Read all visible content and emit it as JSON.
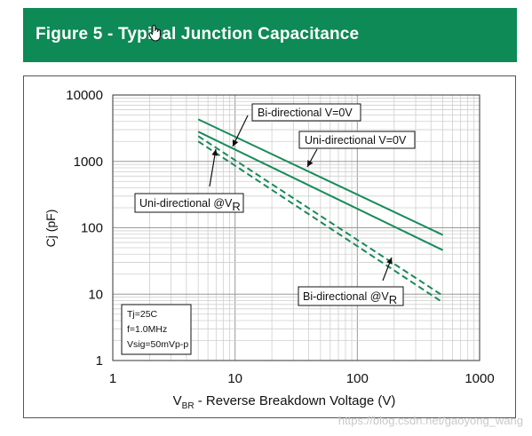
{
  "header": {
    "title": "Figure 5 - Typical Junction Capacitance",
    "background": "#0d8a55"
  },
  "chart_data": {
    "type": "line",
    "title": "",
    "xlabel": {
      "main": "V",
      "sub": "BR",
      "rest": " - Reverse Breakdown Voltage (V)"
    },
    "ylabel": "Cj (pF)",
    "xscale": "log",
    "yscale": "log",
    "xlim": [
      1,
      1000
    ],
    "ylim": [
      1,
      10000
    ],
    "x_ticks": [
      "1",
      "10",
      "100",
      "1000"
    ],
    "y_ticks": [
      "1",
      "10",
      "100",
      "1000",
      "10000"
    ],
    "grid": true,
    "series": [
      {
        "name": "Bi-directional V=0V",
        "style": "solid",
        "color": "#1a8a5a",
        "points": [
          [
            5,
            4300
          ],
          [
            500,
            78
          ]
        ]
      },
      {
        "name": "Uni-directional V=0V",
        "style": "solid",
        "color": "#1a8a5a",
        "points": [
          [
            5,
            2800
          ],
          [
            500,
            46
          ]
        ]
      },
      {
        "name": "Uni-directional @VR",
        "style": "dashed",
        "color": "#1a8a5a",
        "points": [
          [
            5,
            2400
          ],
          [
            500,
            9.5
          ]
        ]
      },
      {
        "name": "Bi-directional @VR",
        "style": "dashed",
        "color": "#1a8a5a",
        "points": [
          [
            5,
            2000
          ],
          [
            500,
            7.5
          ]
        ]
      }
    ],
    "annotations": [
      {
        "text": "Bi-directional V=0V",
        "sub": ""
      },
      {
        "text": "Uni-directional V=0V",
        "sub": ""
      },
      {
        "text": "Uni-directional @V",
        "sub": "R"
      },
      {
        "text": "Bi-directional @V",
        "sub": "R"
      }
    ],
    "conditions": [
      "Tj=25C",
      "f=1.0MHz",
      "Vsig=50mVp-p"
    ]
  },
  "watermark": "https://blog.csdn.net/gaoyong_wang"
}
